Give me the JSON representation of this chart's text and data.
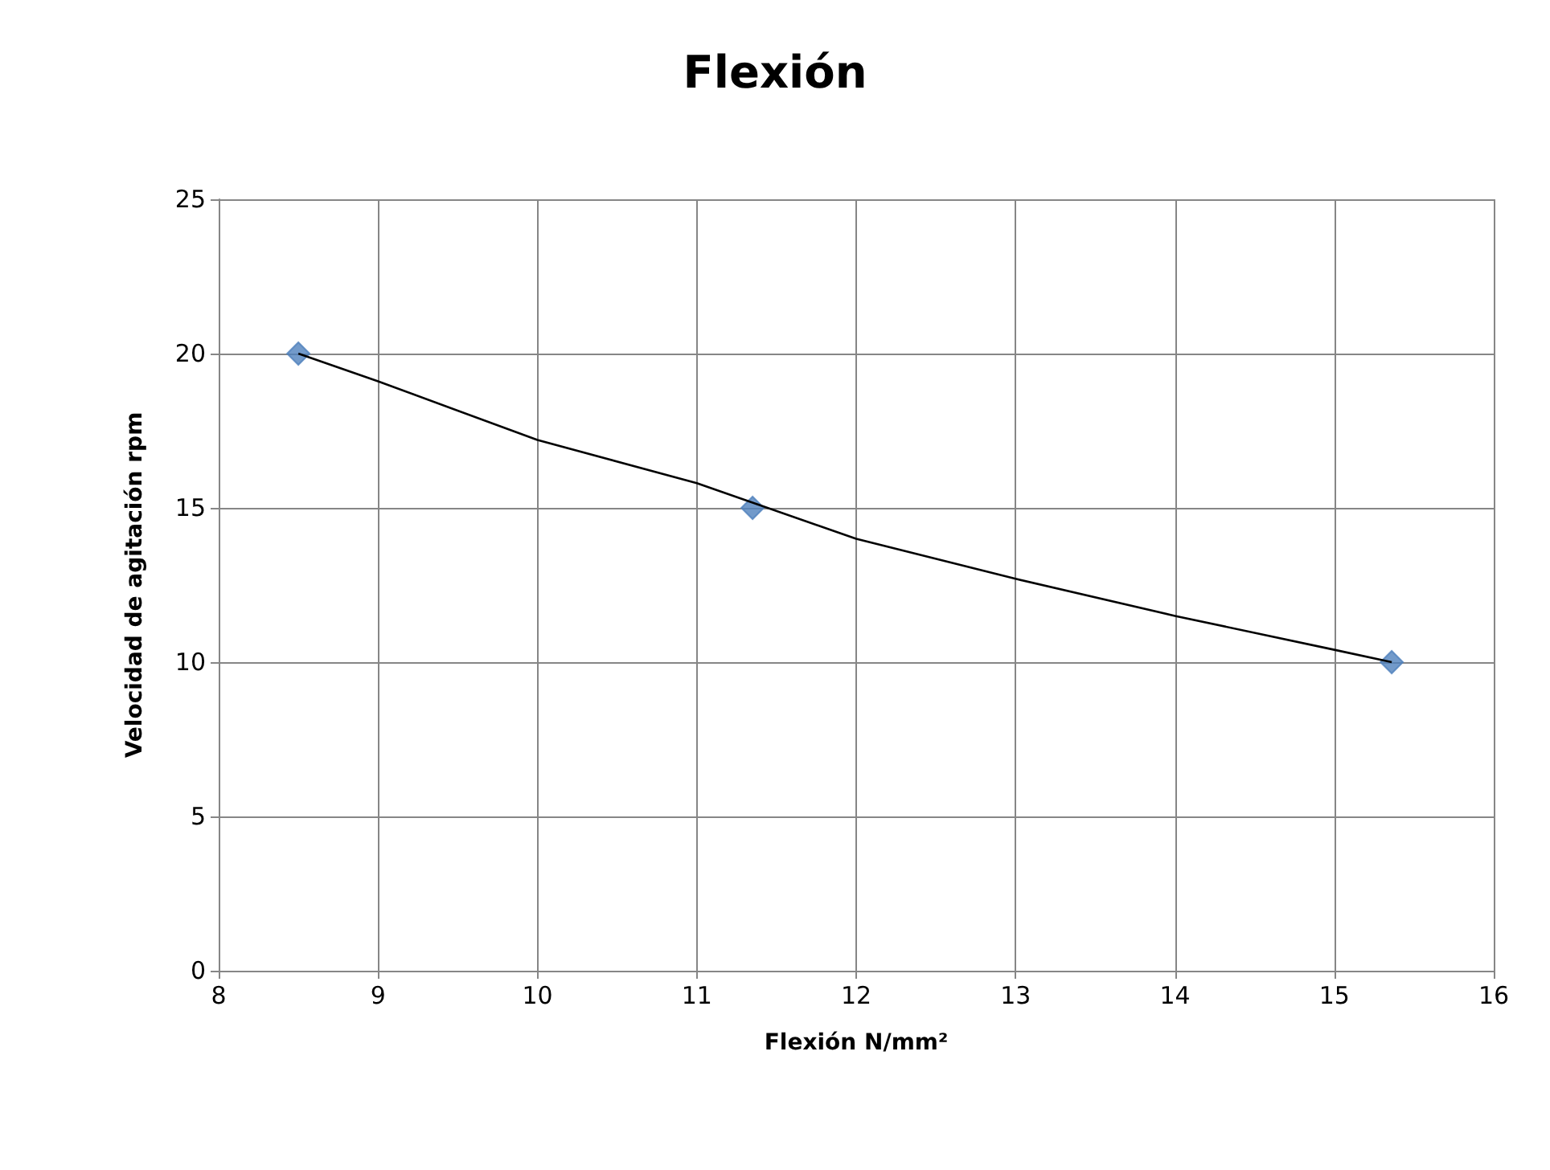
{
  "chart_data": {
    "type": "scatter",
    "title": "Flexión",
    "xlabel": "Flexión N/mm²",
    "ylabel": "Velocidad de agitación rpm",
    "xlim": [
      8,
      16
    ],
    "xticks": [
      8,
      9,
      10,
      11,
      12,
      13,
      14,
      15,
      16
    ],
    "ylim": [
      0,
      25
    ],
    "yticks": [
      0,
      5,
      10,
      15,
      20,
      25
    ],
    "grid": true,
    "series": [
      {
        "marker": "diamond",
        "color": "#4f81bd",
        "x": [
          8.5,
          11.35,
          15.36
        ],
        "values": [
          20,
          15,
          10
        ]
      },
      {
        "type": "line",
        "marker": "none",
        "line_style": "solid",
        "color": "#000000",
        "x": [
          8.5,
          9,
          10,
          11,
          12,
          13,
          14,
          15,
          15.36
        ],
        "values": [
          20,
          19.1,
          17.2,
          15.8,
          14.0,
          12.7,
          11.5,
          10.4,
          10
        ]
      }
    ]
  }
}
